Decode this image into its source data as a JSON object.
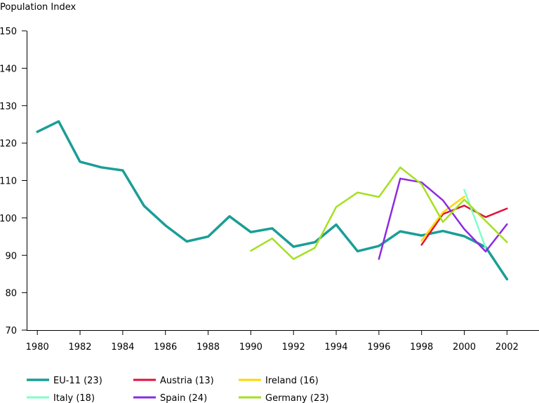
{
  "chart_data": {
    "type": "line",
    "title": "",
    "ylabel": "Population Index",
    "xlabel": "",
    "xlim": [
      1979.5,
      2003.5
    ],
    "ylim": [
      70,
      150
    ],
    "xticks": [
      1980,
      1982,
      1984,
      1986,
      1988,
      1990,
      1992,
      1994,
      1996,
      1998,
      2000,
      2002
    ],
    "xtick_labels": [
      "1980",
      "1982",
      "1984",
      "1986",
      "1988",
      "1990",
      "1992",
      "1994",
      "1996",
      "1998",
      "2000",
      "2002"
    ],
    "yticks": [
      70,
      80,
      90,
      100,
      110,
      120,
      130,
      140,
      150
    ],
    "ytick_labels": [
      "70",
      "80",
      "90",
      "100",
      "110",
      "120",
      "130",
      "140",
      "150"
    ],
    "grid": false,
    "legend": "bottom",
    "series": [
      {
        "name": "EU-11 (23)",
        "color": "#1a9e96",
        "x": [
          1980,
          1981,
          1982,
          1983,
          1984,
          1985,
          1986,
          1987,
          1988,
          1989,
          1990,
          1991,
          1992,
          1993,
          1994,
          1995,
          1996,
          1997,
          1998,
          1999,
          2000,
          2001,
          2002
        ],
        "y": [
          123,
          125.8,
          115,
          113.5,
          112.7,
          103.2,
          98,
          93.7,
          95,
          100.4,
          96.2,
          97.2,
          92.3,
          93.5,
          98.2,
          91.1,
          92.5,
          96.4,
          95.3,
          96.5,
          95.1,
          92.2,
          83.6
        ]
      },
      {
        "name": "Austria (13)",
        "color": "#e0103a",
        "x": [
          1998,
          1999,
          2000,
          2001,
          2002
        ],
        "y": [
          92.8,
          101.0,
          103.3,
          100.2,
          102.5
        ]
      },
      {
        "name": "Ireland (16)",
        "color": "#ffd700",
        "x": [
          1998,
          1999,
          2000
        ],
        "y": [
          93.9,
          101.5,
          105.7
        ]
      },
      {
        "name": "Italy (18)",
        "color": "#7fffc8",
        "x": [
          2000,
          2001
        ],
        "y": [
          107.5,
          92.0
        ]
      },
      {
        "name": "Spain (24)",
        "color": "#8a2be2",
        "x": [
          1996,
          1997,
          1998,
          1999,
          2000,
          2001,
          2002
        ],
        "y": [
          89.0,
          110.5,
          109.5,
          104.7,
          97.0,
          91.0,
          98.3
        ]
      },
      {
        "name": "Germany (23)",
        "color": "#a4e021",
        "x": [
          1990,
          1991,
          1992,
          1993,
          1994,
          1995,
          1996,
          1997,
          1998,
          1999,
          2000,
          2002
        ],
        "y": [
          91.2,
          94.5,
          89.0,
          92.0,
          102.9,
          106.8,
          105.6,
          113.5,
          109.0,
          98.9,
          104.9,
          93.5
        ]
      }
    ]
  }
}
